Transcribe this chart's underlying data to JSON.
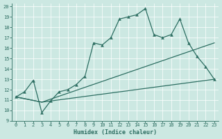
{
  "bg_color": "#cce8e2",
  "line_color": "#2d6e62",
  "xlabel": "Humidex (Indice chaleur)",
  "xlim": [
    -0.5,
    23.5
  ],
  "ylim": [
    9,
    20.3
  ],
  "xticks": [
    0,
    1,
    2,
    3,
    4,
    5,
    6,
    7,
    8,
    9,
    10,
    11,
    12,
    13,
    14,
    15,
    16,
    17,
    18,
    19,
    20,
    21,
    22,
    23
  ],
  "yticks": [
    9,
    10,
    11,
    12,
    13,
    14,
    15,
    16,
    17,
    18,
    19,
    20
  ],
  "line1_x": [
    0,
    1,
    2,
    3,
    4,
    5,
    6,
    7,
    8,
    9,
    10,
    11,
    12,
    13,
    14,
    15,
    16,
    17,
    18,
    19,
    20,
    21,
    22,
    23
  ],
  "line1_y": [
    11.3,
    11.8,
    12.9,
    9.8,
    10.9,
    11.8,
    12.0,
    12.5,
    13.3,
    16.5,
    16.3,
    17.0,
    18.8,
    19.0,
    19.2,
    19.8,
    17.3,
    17.0,
    17.3,
    18.8,
    16.5,
    15.2,
    14.2,
    13.0
  ],
  "line2_x": [
    0,
    3,
    23
  ],
  "line2_y": [
    11.3,
    10.8,
    16.5
  ],
  "line3_x": [
    0,
    3,
    23
  ],
  "line3_y": [
    11.3,
    10.8,
    13.0
  ],
  "grid_color": "#ffffff",
  "tick_fontsize": 5.0,
  "xlabel_fontsize": 6.0,
  "linewidth": 0.9,
  "marker_size": 2.8
}
